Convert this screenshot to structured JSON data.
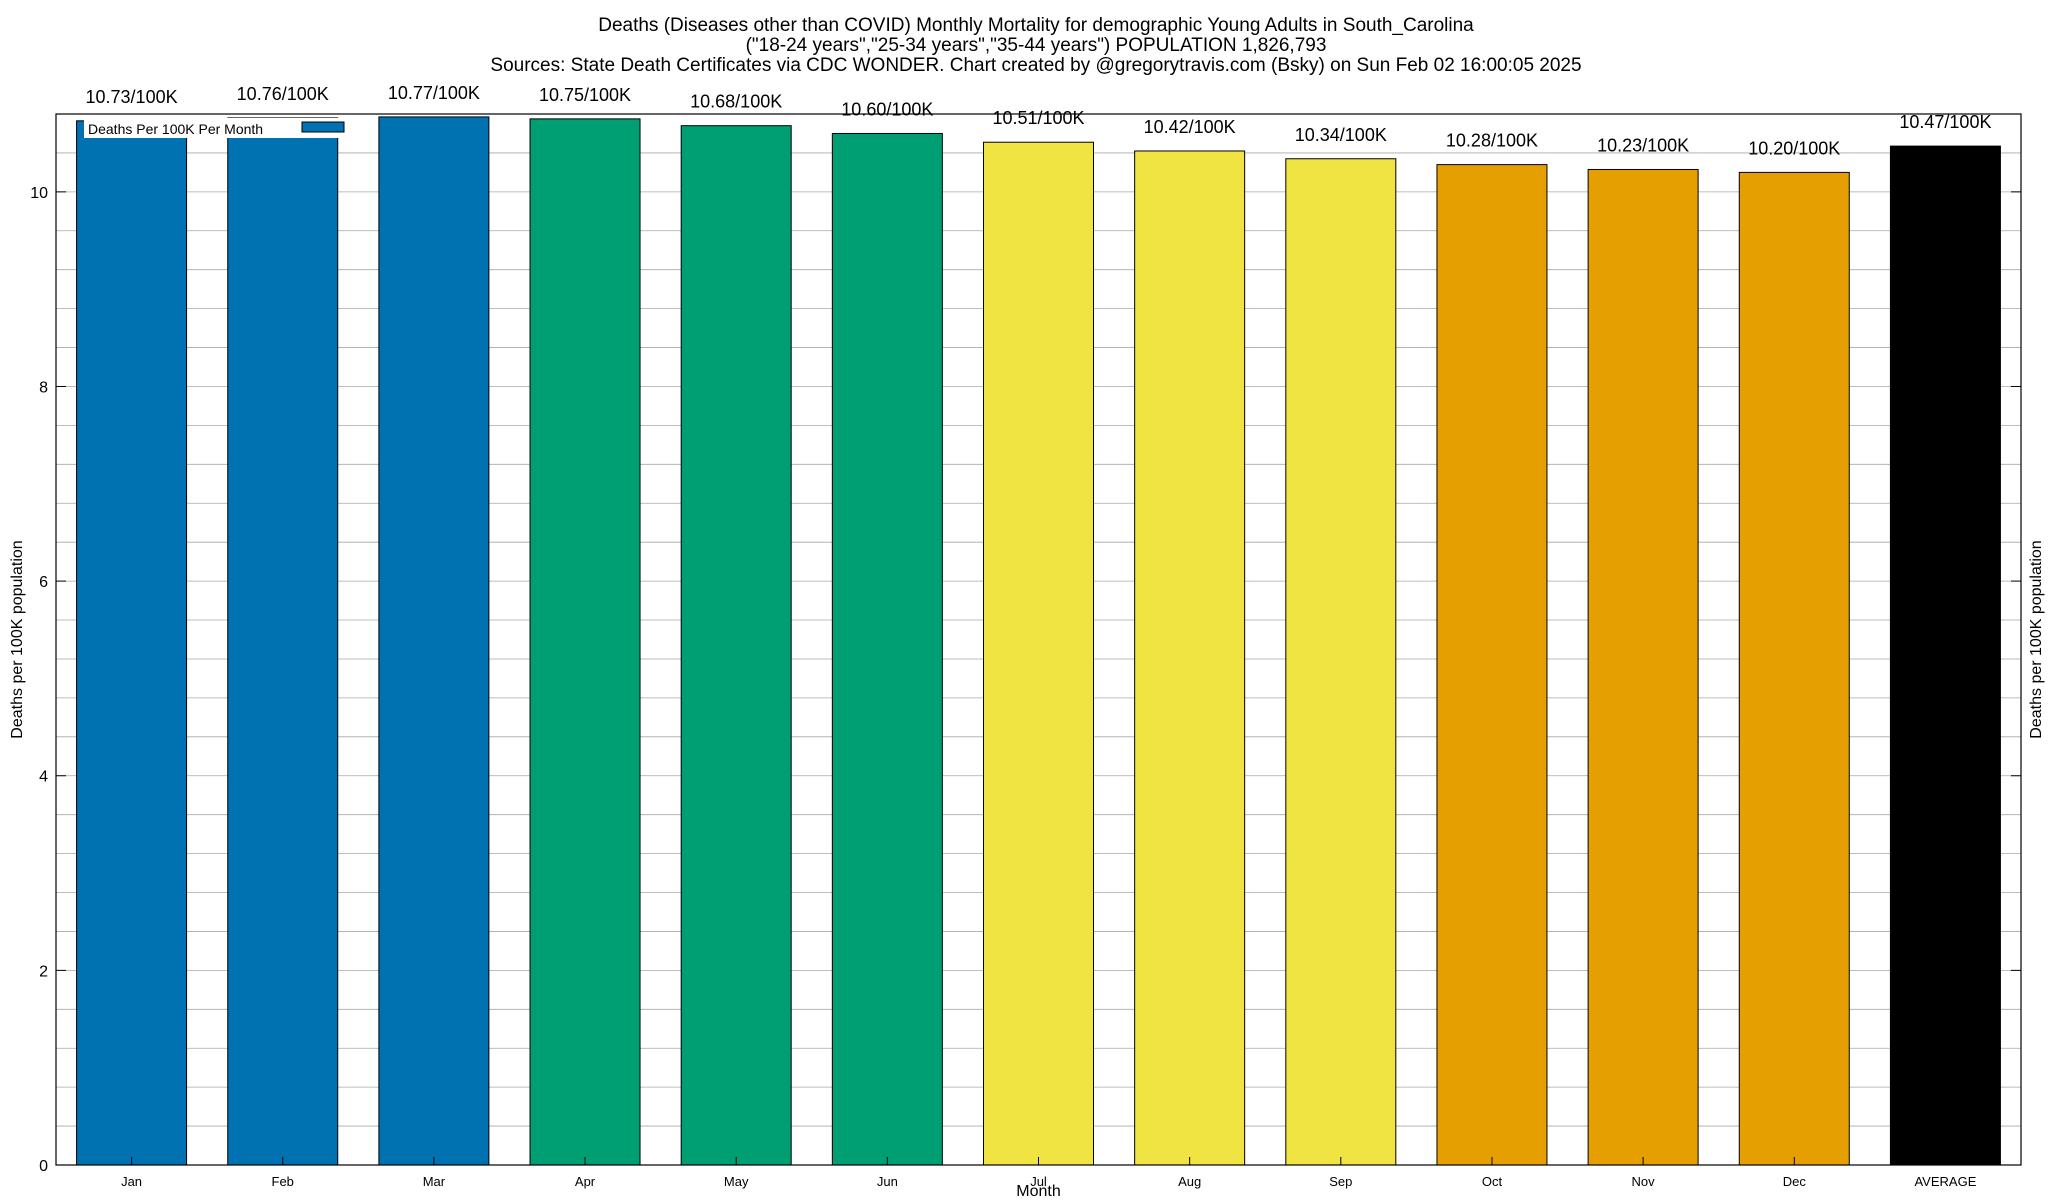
{
  "chart_data": {
    "type": "bar",
    "title_lines": [
      "Deaths (Diseases other than COVID) Monthly Mortality for demographic Young Adults in South_Carolina",
      "(\"18-24 years\",\"25-34 years\",\"35-44 years\") POPULATION 1,826,793",
      "Sources: State Death Certificates via CDC WONDER.              Chart created by @gregorytravis.com (Bsky) on Sun Feb 02 16:00:05 2025"
    ],
    "xlabel": "Month",
    "ylabel": "Deaths per 100K population",
    "ylabel_right": "Deaths per 100K population",
    "ylim": [
      0,
      10.8
    ],
    "yticks": [
      0,
      2,
      4,
      6,
      8,
      10
    ],
    "grid": true,
    "legend": {
      "position": "top-left",
      "entries": [
        {
          "label": "Deaths Per 100K Per Month",
          "color": "#0072b2"
        }
      ]
    },
    "categories": [
      "Jan",
      "Feb",
      "Mar",
      "Apr",
      "May",
      "Jun",
      "Jul",
      "Aug",
      "Sep",
      "Oct",
      "Nov",
      "Dec",
      "AVERAGE"
    ],
    "values": [
      10.73,
      10.76,
      10.77,
      10.75,
      10.68,
      10.6,
      10.51,
      10.42,
      10.34,
      10.28,
      10.23,
      10.2,
      10.47
    ],
    "data_labels": [
      "10.73/100K",
      "10.76/100K",
      "10.77/100K",
      "10.75/100K",
      "10.68/100K",
      "10.60/100K",
      "10.51/100K",
      "10.42/100K",
      "10.34/100K",
      "10.28/100K",
      "10.23/100K",
      "10.20/100K",
      "10.47/100K"
    ],
    "colors": [
      "#0072b2",
      "#0072b2",
      "#0072b2",
      "#009e73",
      "#009e73",
      "#009e73",
      "#f0e442",
      "#f0e442",
      "#f0e442",
      "#e69f00",
      "#e69f00",
      "#e69f00",
      "#000000"
    ]
  }
}
